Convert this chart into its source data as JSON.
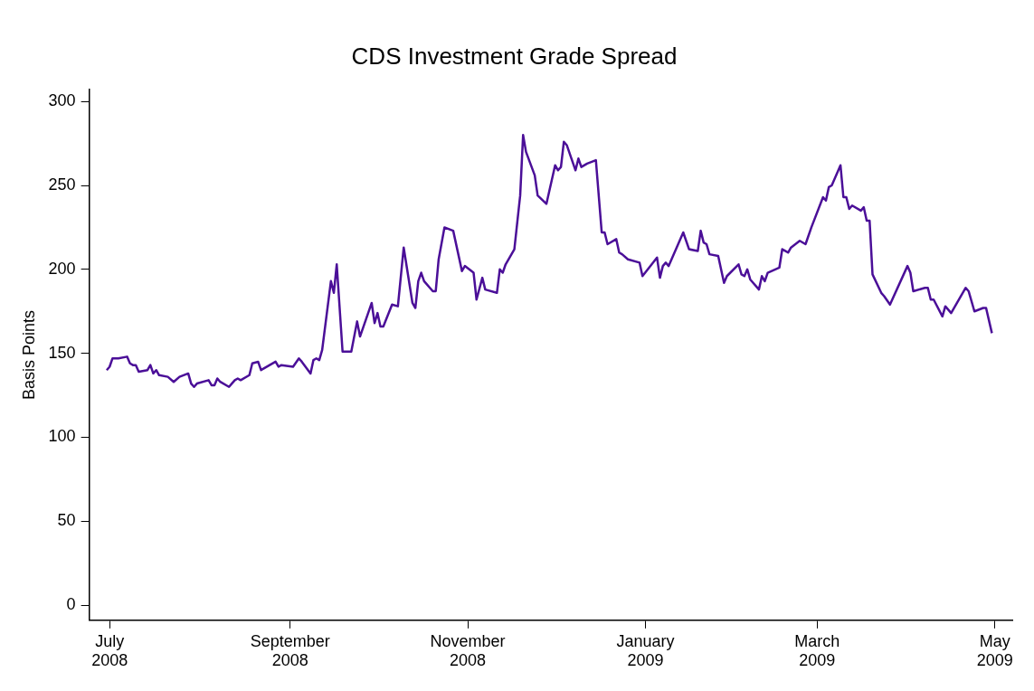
{
  "chart_data": {
    "type": "line",
    "title": "CDS Investment Grade Spread",
    "ylabel": "Basis Points",
    "xlim": [
      "2008-06-24",
      "2009-05-07"
    ],
    "ylim": [
      -9,
      307
    ],
    "yticks": [
      0,
      50,
      100,
      150,
      200,
      250,
      300
    ],
    "xticks": [
      {
        "value": "2008-07-01",
        "label": "July\n2008"
      },
      {
        "value": "2008-09-01",
        "label": "September\n2008"
      },
      {
        "value": "2008-11-01",
        "label": "November\n2008"
      },
      {
        "value": "2009-01-01",
        "label": "January\n2009"
      },
      {
        "value": "2009-03-01",
        "label": "March\n2009"
      },
      {
        "value": "2009-05-01",
        "label": "May\n2009"
      }
    ],
    "grid": false,
    "legend": false,
    "marker": "none",
    "line_style": "solid",
    "x": [
      "2008-06-30",
      "2008-07-01",
      "2008-07-02",
      "2008-07-04",
      "2008-07-07",
      "2008-07-08",
      "2008-07-09",
      "2008-07-10",
      "2008-07-11",
      "2008-07-14",
      "2008-07-15",
      "2008-07-16",
      "2008-07-17",
      "2008-07-18",
      "2008-07-21",
      "2008-07-23",
      "2008-07-25",
      "2008-07-28",
      "2008-07-29",
      "2008-07-30",
      "2008-07-31",
      "2008-08-04",
      "2008-08-05",
      "2008-08-06",
      "2008-08-07",
      "2008-08-08",
      "2008-08-11",
      "2008-08-13",
      "2008-08-14",
      "2008-08-15",
      "2008-08-18",
      "2008-08-19",
      "2008-08-21",
      "2008-08-22",
      "2008-08-27",
      "2008-08-28",
      "2008-08-29",
      "2008-09-02",
      "2008-09-04",
      "2008-09-05",
      "2008-09-08",
      "2008-09-09",
      "2008-09-10",
      "2008-09-11",
      "2008-09-12",
      "2008-09-15",
      "2008-09-16",
      "2008-09-17",
      "2008-09-19",
      "2008-09-22",
      "2008-09-24",
      "2008-09-25",
      "2008-09-29",
      "2008-09-30",
      "2008-10-01",
      "2008-10-02",
      "2008-10-03",
      "2008-10-06",
      "2008-10-08",
      "2008-10-10",
      "2008-10-13",
      "2008-10-14",
      "2008-10-15",
      "2008-10-16",
      "2008-10-17",
      "2008-10-20",
      "2008-10-21",
      "2008-10-22",
      "2008-10-24",
      "2008-10-27",
      "2008-10-30",
      "2008-10-31",
      "2008-11-03",
      "2008-11-04",
      "2008-11-06",
      "2008-11-07",
      "2008-11-11",
      "2008-11-12",
      "2008-11-13",
      "2008-11-14",
      "2008-11-17",
      "2008-11-19",
      "2008-11-20",
      "2008-11-21",
      "2008-11-24",
      "2008-11-25",
      "2008-11-28",
      "2008-12-01",
      "2008-12-02",
      "2008-12-03",
      "2008-12-04",
      "2008-12-05",
      "2008-12-08",
      "2008-12-09",
      "2008-12-10",
      "2008-12-12",
      "2008-12-15",
      "2008-12-17",
      "2008-12-18",
      "2008-12-19",
      "2008-12-22",
      "2008-12-23",
      "2008-12-24",
      "2008-12-26",
      "2008-12-30",
      "2008-12-31",
      "2009-01-05",
      "2009-01-06",
      "2009-01-07",
      "2009-01-08",
      "2009-01-09",
      "2009-01-14",
      "2009-01-16",
      "2009-01-19",
      "2009-01-20",
      "2009-01-21",
      "2009-01-22",
      "2009-01-23",
      "2009-01-26",
      "2009-01-28",
      "2009-01-29",
      "2009-02-02",
      "2009-02-03",
      "2009-02-04",
      "2009-02-05",
      "2009-02-06",
      "2009-02-09",
      "2009-02-10",
      "2009-02-11",
      "2009-02-12",
      "2009-02-16",
      "2009-02-17",
      "2009-02-18",
      "2009-02-19",
      "2009-02-20",
      "2009-02-23",
      "2009-02-25",
      "2009-02-27",
      "2009-03-03",
      "2009-03-04",
      "2009-03-05",
      "2009-03-06",
      "2009-03-09",
      "2009-03-10",
      "2009-03-11",
      "2009-03-12",
      "2009-03-13",
      "2009-03-16",
      "2009-03-17",
      "2009-03-18",
      "2009-03-19",
      "2009-03-20",
      "2009-03-23",
      "2009-03-24",
      "2009-03-26",
      "2009-04-01",
      "2009-04-02",
      "2009-04-03",
      "2009-04-07",
      "2009-04-08",
      "2009-04-09",
      "2009-04-10",
      "2009-04-13",
      "2009-04-14",
      "2009-04-16",
      "2009-04-21",
      "2009-04-22",
      "2009-04-24",
      "2009-04-27",
      "2009-04-28",
      "2009-04-30"
    ],
    "series": [
      {
        "color": "#4b0f98",
        "values": [
          140,
          142,
          147,
          147,
          148,
          144,
          143,
          143,
          139,
          140,
          143,
          138,
          140,
          137,
          136,
          133,
          136,
          138,
          132,
          130,
          132,
          134,
          131,
          131,
          135,
          133,
          130,
          134,
          135,
          134,
          137,
          144,
          145,
          140,
          145,
          142,
          143,
          142,
          147,
          145,
          138,
          146,
          147,
          146,
          152,
          193,
          186,
          203,
          151,
          151,
          169,
          160,
          180,
          168,
          174,
          166,
          166,
          179,
          178,
          213,
          180,
          177,
          193,
          198,
          193,
          187,
          187,
          206,
          225,
          223,
          199,
          202,
          198,
          182,
          195,
          188,
          186,
          200,
          198,
          203,
          212,
          244,
          280,
          270,
          256,
          244,
          239,
          262,
          259,
          261,
          276,
          274,
          259,
          266,
          261,
          263,
          265,
          222,
          222,
          215,
          218,
          210,
          209,
          206,
          204,
          196,
          207,
          195,
          202,
          204,
          202,
          222,
          212,
          211,
          223,
          216,
          215,
          209,
          208,
          192,
          196,
          203,
          197,
          196,
          200,
          194,
          188,
          196,
          193,
          198,
          201,
          212,
          211,
          210,
          213,
          217,
          215,
          225,
          243,
          241,
          249,
          250,
          262,
          243,
          243,
          236,
          238,
          235,
          237,
          229,
          229,
          197,
          186,
          184,
          179,
          202,
          198,
          187,
          189,
          189,
          182,
          182,
          172,
          178,
          174,
          189,
          187,
          175,
          177,
          177,
          162
        ]
      }
    ]
  }
}
